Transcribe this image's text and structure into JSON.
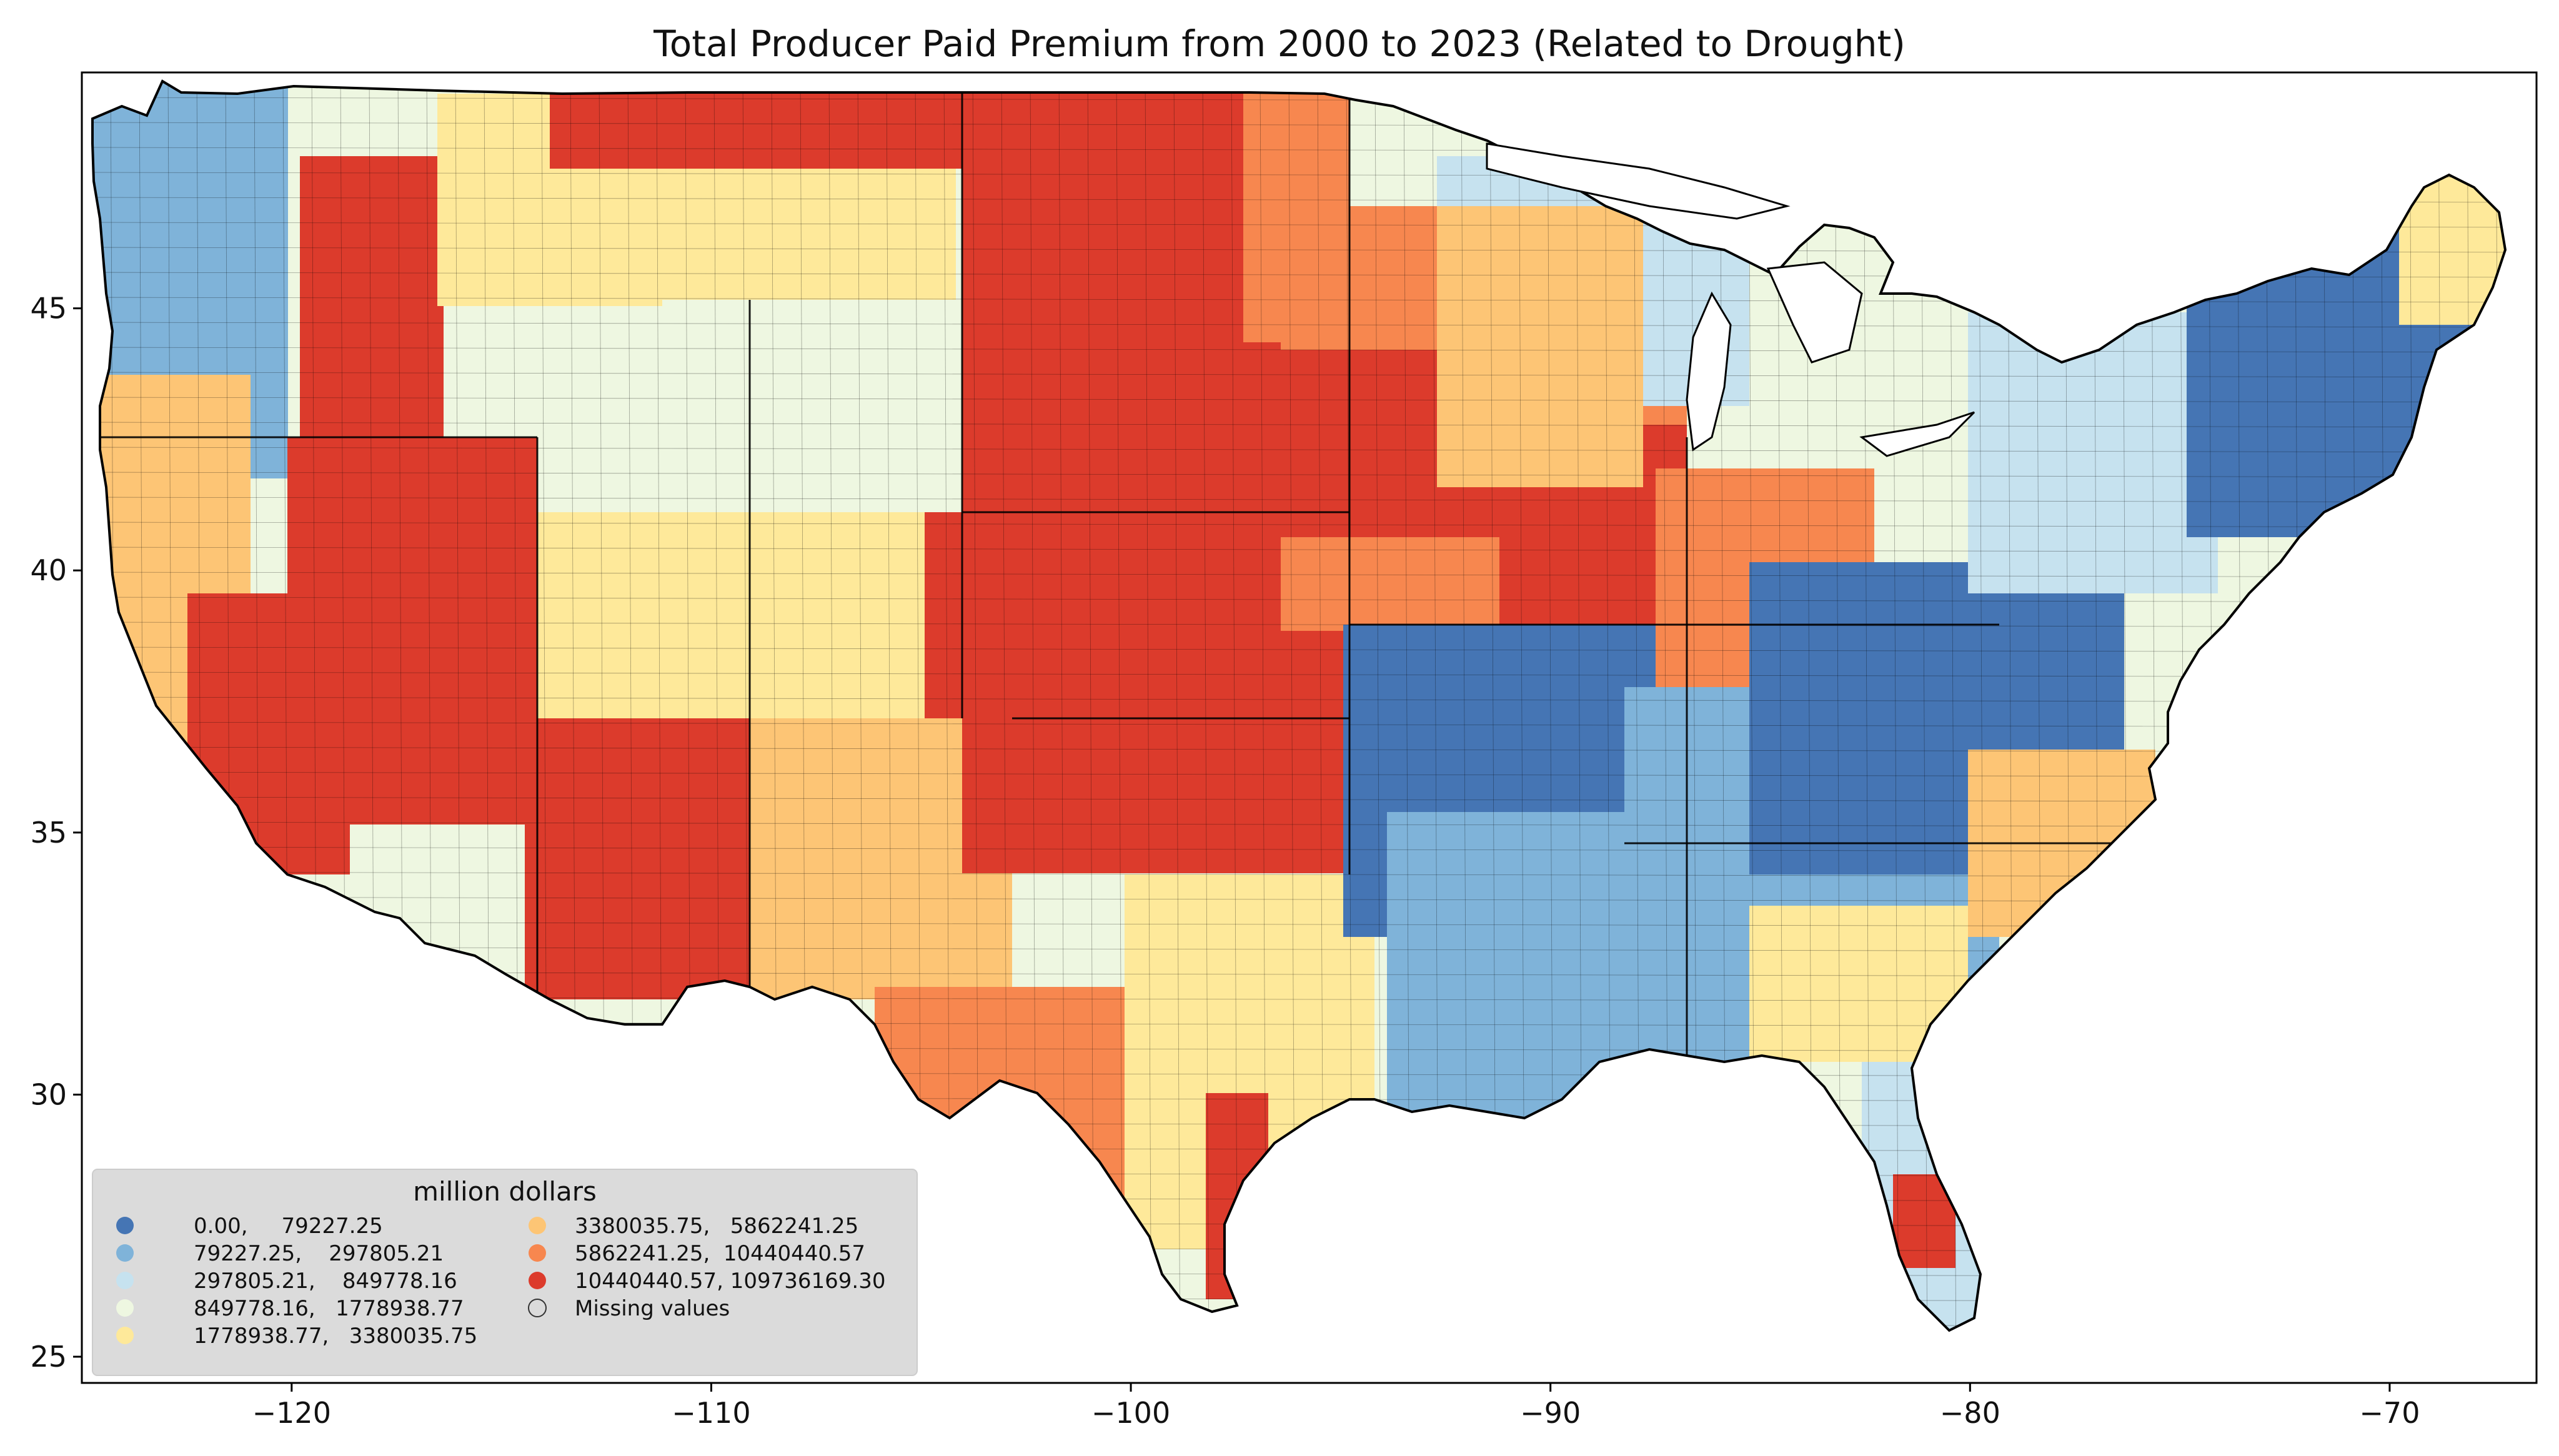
{
  "title": "Total Producer Paid Premium from 2000 to 2023 (Related to Drought)",
  "map": {
    "region": "Contiguous United States",
    "unit_level": "county",
    "x_ticks": [
      "−120",
      "−110",
      "−100",
      "−90",
      "−80",
      "−70"
    ],
    "y_ticks": [
      "45",
      "40",
      "35",
      "30",
      "25"
    ],
    "lon_range": [
      -125,
      -66.5
    ],
    "lat_range": [
      24.5,
      49.5
    ],
    "background_color": "#ffffff",
    "state_outline_color": "#000000",
    "missing_color": "#d3d3d3"
  },
  "legend": {
    "title": "million dollars",
    "placement": "lower-left",
    "columns": [
      [
        {
          "label": "0.00,     79227.25",
          "color": "#4575b4"
        },
        {
          "label": "79227.25,    297805.21",
          "color": "#7fb3d9"
        },
        {
          "label": "297805.21,    849778.16",
          "color": "#c6e2ef"
        },
        {
          "label": "849778.16,   1778938.77",
          "color": "#eef7e1"
        },
        {
          "label": "1778938.77,   3380035.75",
          "color": "#fee99a"
        }
      ],
      [
        {
          "label": "3380035.75,   5862241.25",
          "color": "#fdc575"
        },
        {
          "label": "5862241.25,  10440440.57",
          "color": "#f7874f"
        },
        {
          "label": "10440440.57, 109736169.30",
          "color": "#dc3b2c"
        },
        {
          "label": "Missing values",
          "color": "none"
        }
      ]
    ]
  }
}
